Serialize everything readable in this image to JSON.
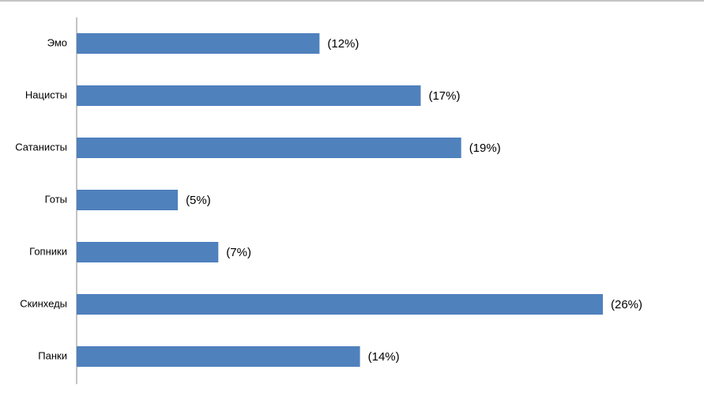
{
  "chart_data": {
    "type": "hbar",
    "categories": [
      "Эмо",
      "Нацисты",
      "Сатанисты",
      "Готы",
      "Гопники",
      "Скинхеды",
      "Панки"
    ],
    "values": [
      12,
      17,
      19,
      5,
      7,
      26,
      14
    ],
    "value_labels": [
      "(12%)",
      "(17%)",
      "(19%)",
      "(5%)",
      "(7%)",
      "(26%)",
      "(14%)"
    ],
    "color": "#4f81bd"
  }
}
